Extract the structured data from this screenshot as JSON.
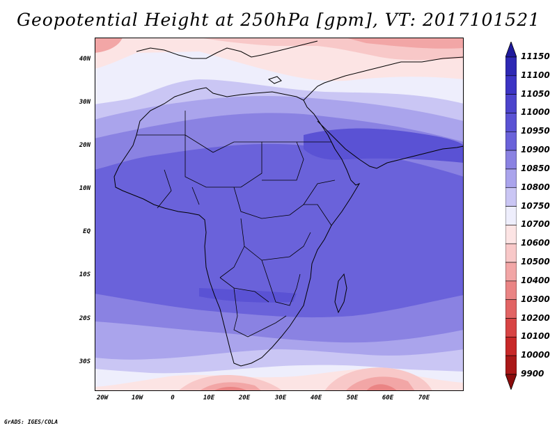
{
  "title": "Geopotential Height at 250hPa [gpm], VT: 2017101521",
  "credit": "GrADS: IGES/COLA",
  "map": {
    "variable": "Geopotential Height",
    "level": "250hPa",
    "units": "gpm",
    "valid_time": "2017101521",
    "lon_range": [
      -25,
      80
    ],
    "lat_range": [
      -37,
      45
    ],
    "lat_labels": [
      "40N",
      "30N",
      "20N",
      "10N",
      "EQ",
      "10S",
      "20S",
      "30S"
    ],
    "lon_labels": [
      "20W",
      "10W",
      "0",
      "10E",
      "20E",
      "30E",
      "40E",
      "50E",
      "60E",
      "70E"
    ]
  },
  "colorbar": {
    "levels": [
      "11150",
      "11100",
      "11050",
      "11000",
      "10950",
      "10900",
      "10850",
      "10800",
      "10750",
      "10700",
      "10600",
      "10500",
      "10400",
      "10300",
      "10200",
      "10100",
      "10000",
      "9900"
    ],
    "colors": [
      "#1f1a9c",
      "#2e28b4",
      "#3c34c4",
      "#4c44cc",
      "#5a52d4",
      "#6a62da",
      "#8a82e2",
      "#aaa4ec",
      "#cac6f4",
      "#eeeefc",
      "#fce4e4",
      "#f8c8c8",
      "#f2a6a6",
      "#ea8484",
      "#e26464",
      "#d84444",
      "#c82828",
      "#aa1818",
      "#8a0c0c"
    ]
  }
}
